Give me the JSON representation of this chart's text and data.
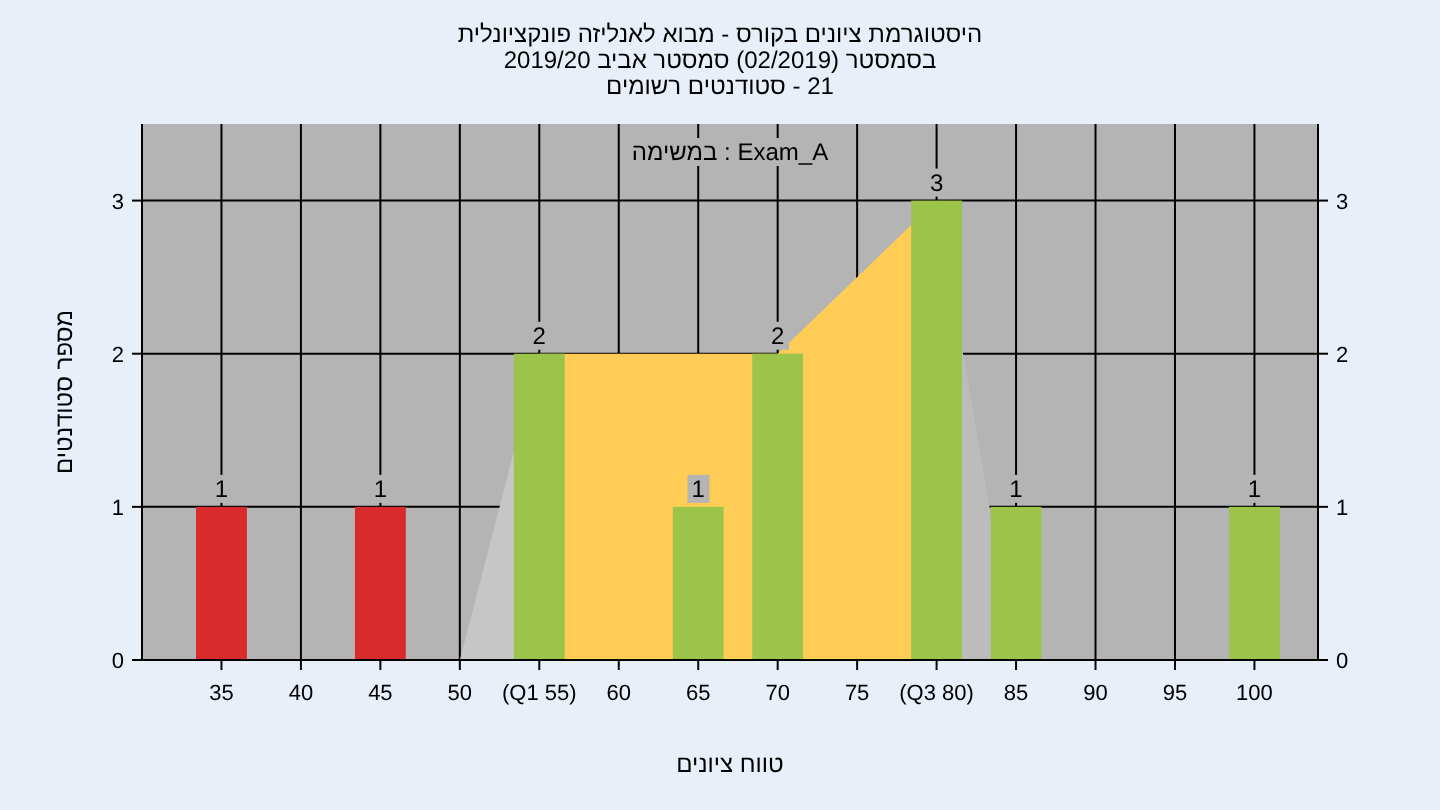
{
  "chart_data": {
    "type": "bar",
    "title": "היסטוגרמת ציונים בקורס - מבוא לאנליזה פונקציונלית",
    "subtitle": "בסמסטר (02/2019) סמסטר אביב 2019/20",
    "annotations": [
      "21 - סטודנטים רשומים",
      "Exam_A : במשימה"
    ],
    "xlabel": "טווח ציונים",
    "ylabel": "מספר סטודנטים",
    "series": [
      {
        "type": "area",
        "color": "#c6c6c6",
        "x": [
          50,
          55
        ],
        "values": [
          0,
          2
        ]
      },
      {
        "type": "area",
        "color": "#ffcc55",
        "x": [
          55,
          70,
          80
        ],
        "values": [
          2,
          2,
          3
        ]
      },
      {
        "type": "area",
        "color": "#bcbcbc",
        "x": [
          80,
          85
        ],
        "values": [
          3,
          0
        ]
      },
      {
        "x": [
          35,
          45,
          55,
          65,
          70,
          80,
          85,
          100
        ],
        "values": [
          1,
          1,
          2,
          1,
          2,
          3,
          1,
          1
        ],
        "value_labels": [
          "1",
          "1",
          "2",
          "1",
          "2",
          "3",
          "1",
          "1"
        ],
        "colors": [
          "#d92b2b",
          "#d92b2b",
          "#9cc44a",
          "#9cc44a",
          "#9cc44a",
          "#9cc44a",
          "#9cc44a",
          "#9cc44a"
        ]
      }
    ],
    "grid": true,
    "xlim": [
      30,
      104
    ],
    "xticks": [
      35,
      40,
      45,
      50,
      {
        "value": 55,
        "label": "(Q1 55)"
      },
      60,
      65,
      70,
      75,
      {
        "value": 80,
        "label": "(Q3 80)"
      },
      85,
      90,
      95,
      100
    ],
    "ylim": [
      0,
      3.5
    ],
    "yticks": [
      0,
      1,
      2,
      3
    ],
    "y2lim": [
      0,
      3.5
    ],
    "y2ticks": [
      0,
      1,
      2,
      3
    ]
  }
}
